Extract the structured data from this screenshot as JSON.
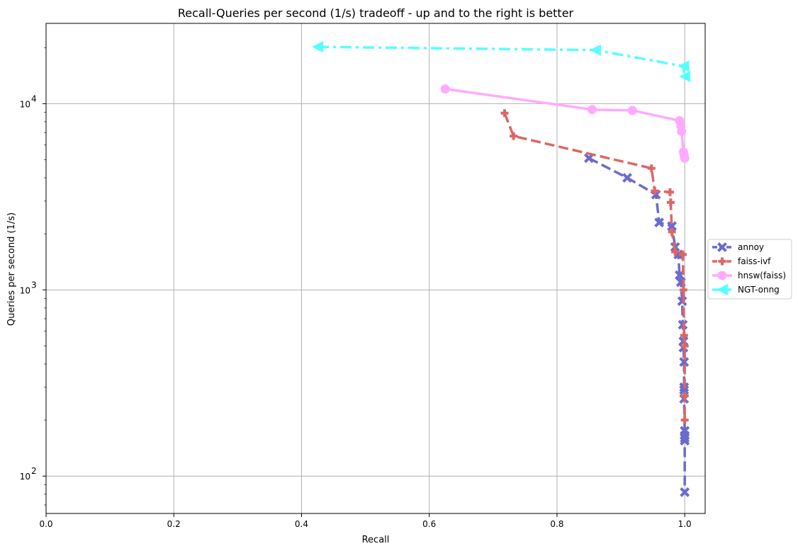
{
  "chart_data": {
    "type": "line",
    "title": "Recall-Queries per second (1/s) tradeoff - up and to the right is better",
    "xlabel": "Recall",
    "ylabel": "Queries per second (1/s)",
    "xlim": [
      0.0,
      1.032
    ],
    "ylim": [
      63,
      27000
    ],
    "yscale": "log",
    "grid": true,
    "legend_position": "right-outside",
    "x_ticks": [
      {
        "value": 0.0,
        "label": "0.0"
      },
      {
        "value": 0.2,
        "label": "0.2"
      },
      {
        "value": 0.4,
        "label": "0.4"
      },
      {
        "value": 0.6,
        "label": "0.6"
      },
      {
        "value": 0.8,
        "label": "0.8"
      },
      {
        "value": 1.0,
        "label": "1.0"
      }
    ],
    "y_ticks": [
      {
        "value": 100,
        "base": "10",
        "exp": "2"
      },
      {
        "value": 1000,
        "base": "10",
        "exp": "3"
      },
      {
        "value": 10000,
        "base": "10",
        "exp": "4"
      }
    ],
    "series": [
      {
        "name": "annoy",
        "color": "#6b6bcc",
        "line_style": "dashed",
        "marker": "x",
        "x": [
          0.85,
          0.91,
          0.955,
          0.96,
          0.98,
          0.985,
          0.99,
          0.992,
          0.994,
          0.996,
          0.997,
          0.998,
          0.998,
          0.999,
          0.999,
          0.999,
          0.999,
          1.0,
          1.0,
          1.0,
          1.0,
          1.0
        ],
        "y": [
          5100,
          4000,
          3250,
          2300,
          2200,
          1700,
          1550,
          1200,
          1100,
          870,
          650,
          530,
          490,
          410,
          300,
          290,
          260,
          175,
          165,
          160,
          155,
          82
        ]
      },
      {
        "name": "faiss-ivf",
        "color": "#dd6666",
        "line_style": "dashed",
        "marker": "plus",
        "x": [
          0.718,
          0.732,
          0.948,
          0.953,
          0.977,
          0.978,
          0.98,
          0.985,
          0.997,
          0.998,
          0.999,
          1.0,
          1.0,
          1.0
        ],
        "y": [
          8900,
          6700,
          4500,
          3400,
          3350,
          2950,
          2050,
          1600,
          1550,
          1000,
          570,
          500,
          270,
          200
        ]
      },
      {
        "name": "hnsw(faiss)",
        "color": "#ffaaff",
        "line_style": "solid",
        "marker": "circle",
        "x": [
          0.625,
          0.855,
          0.918,
          0.992,
          0.994,
          0.995,
          0.998,
          0.999,
          1.0
        ],
        "y": [
          12000,
          9300,
          9200,
          8100,
          7600,
          7100,
          5500,
          5300,
          5100
        ]
      },
      {
        "name": "NGT-onng",
        "color": "#55ffff",
        "line_style": "dashdot",
        "marker": "triangle-left",
        "x": [
          0.425,
          0.86,
          0.998,
          1.0
        ],
        "y": [
          20200,
          19400,
          15900,
          14000
        ]
      }
    ]
  }
}
